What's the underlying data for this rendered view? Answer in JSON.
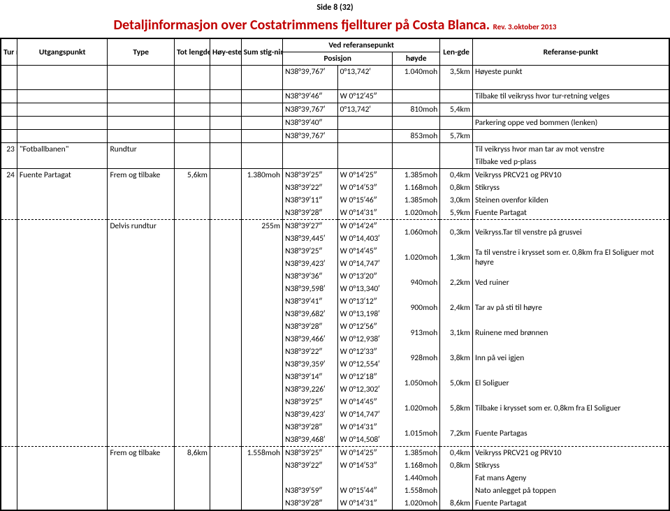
{
  "page_label": "Side 8 (32)",
  "title": "Detaljinformasjon over Costatrimmens fjellturer på Costa Blanca.",
  "rev": "Rev. 3.oktober 2013",
  "headers": {
    "turnr": "Tur nr.",
    "utg": "Utgangspunkt",
    "type": "Type",
    "tot": "Tot lengde",
    "hoy": "Høy-este pkt.",
    "sum": "Sum stig-ning",
    "vedref": "Ved referansepunkt",
    "posisjon": "Posisjon",
    "hoyde": "høyde",
    "len": "Len-gde",
    "ref": "Referanse-punkt"
  },
  "rows": [
    {
      "c": [
        "",
        "",
        "",
        "",
        "",
        "",
        "N38°39,767′",
        "0°13,742′",
        "1.040moh",
        "3,5km",
        "Høyeste punkt"
      ],
      "b": "novb"
    },
    {
      "blank": true
    },
    {
      "c": [
        "",
        "",
        "",
        "",
        "",
        "",
        "N38°39′46″",
        "W 0°12′45″",
        "",
        "",
        "Tilbake til veikryss hvor tur-retning velges"
      ]
    },
    {
      "c": [
        "",
        "",
        "",
        "",
        "",
        "",
        "N38°39,767′",
        "0°13,742′",
        "810moh",
        "5,4km",
        ""
      ]
    },
    {
      "c": [
        "",
        "",
        "",
        "",
        "",
        "",
        "N38°39′40″",
        "",
        "",
        "",
        "Parkering oppe ved bommen (lenken)"
      ]
    },
    {
      "c": [
        "",
        "",
        "",
        "",
        "",
        "",
        "N38°39,767′",
        "",
        "853moh",
        "5,7km",
        ""
      ]
    },
    {
      "c": [
        "23",
        "\"Fotballbanen\"",
        "Rundtur",
        "",
        "",
        "",
        "",
        "",
        "",
        "",
        "Til veikryss hvor man tar av mot venstre"
      ],
      "b": "top"
    },
    {
      "c": [
        "",
        "",
        "",
        "",
        "",
        "",
        "",
        "",
        "",
        "",
        "Tilbake ved p-plass"
      ],
      "b": "novb"
    },
    {
      "c": [
        "24",
        "Fuente Partagat",
        "Frem og tilbake",
        "5,6km",
        "",
        "1.380moh",
        "N38°39′25″",
        "W 0°14′25″",
        "1.385moh",
        "0,4km",
        "Veikryss PRCV21 og PRV10"
      ],
      "b": "top"
    },
    {
      "c": [
        "",
        "",
        "",
        "",
        "",
        "",
        "N38°39′22″",
        "W 0°14′53″",
        "1.168moh",
        "0,8km",
        "Stikryss"
      ],
      "b": "novb"
    },
    {
      "c": [
        "",
        "",
        "",
        "",
        "",
        "",
        "N38°39′11″",
        "W 0°15′46″",
        "1.385moh",
        "3,0km",
        "Steinen ovenfor kilden"
      ],
      "b": "novb"
    },
    {
      "c": [
        "",
        "",
        "",
        "",
        "",
        "",
        "N38°39′28″",
        "W 0°14′31″",
        "1.020moh",
        "5,9km",
        "Fuente Partagat"
      ],
      "b": "novb"
    },
    {
      "c": [
        "",
        "",
        "Delvis rundtur",
        "",
        "",
        "255m",
        "N38°39′27″",
        "W 0°14′24″",
        "1.060moh",
        "0,3km",
        "Veikryss.Tar til venstre på grusvei"
      ],
      "b": "dashedtop",
      "rs2": [
        8,
        9,
        10
      ]
    },
    {
      "c": [
        "",
        "",
        "",
        "",
        "",
        "",
        "N38°39,445′",
        "W 0°14,403′",
        "",
        "",
        ""
      ],
      "b": "novb"
    },
    {
      "c": [
        "",
        "",
        "",
        "",
        "",
        "",
        "N38°39′25″",
        "W 0°14′45″",
        "1.020moh",
        "1,3km",
        "Ta til venstre i krysset som er. 0,8km fra El Soliguer mot høyre"
      ],
      "b": "novb",
      "rs2": [
        8,
        9,
        10
      ]
    },
    {
      "c": [
        "",
        "",
        "",
        "",
        "",
        "",
        "N38°39,423′",
        "W 0°14,747′",
        "",
        "",
        ""
      ],
      "b": "novb"
    },
    {
      "c": [
        "",
        "",
        "",
        "",
        "",
        "",
        "N38°39′36″",
        "W 0°13′20″",
        "940moh",
        "2,2km",
        "Ved ruiner"
      ],
      "b": "novb",
      "rs2": [
        8,
        9,
        10
      ]
    },
    {
      "c": [
        "",
        "",
        "",
        "",
        "",
        "",
        "N38°39,598′",
        "W 0°13,340′",
        "",
        "",
        ""
      ],
      "b": "novb"
    },
    {
      "c": [
        "",
        "",
        "",
        "",
        "",
        "",
        "N38°39′41″",
        "W 0°13′12″",
        "900moh",
        "2,4km",
        "Tar av på sti til høyre"
      ],
      "b": "novb",
      "rs2": [
        8,
        9,
        10
      ]
    },
    {
      "c": [
        "",
        "",
        "",
        "",
        "",
        "",
        "N38°39,682′",
        "W 0°13,198′",
        "",
        "",
        ""
      ],
      "b": "novb"
    },
    {
      "c": [
        "",
        "",
        "",
        "",
        "",
        "",
        "N38°39′28″",
        "W 0°12′56″",
        "913moh",
        "3,1km",
        "Ruinene med brønnen"
      ],
      "b": "novb",
      "rs2": [
        8,
        9,
        10
      ]
    },
    {
      "c": [
        "",
        "",
        "",
        "",
        "",
        "",
        "N38°39,466′",
        "W 0°12,938′",
        "",
        "",
        ""
      ],
      "b": "novb"
    },
    {
      "c": [
        "",
        "",
        "",
        "",
        "",
        "",
        "N38°39′22″",
        "W 0°12′33″",
        "928moh",
        "3,8km",
        "Inn på vei igjen"
      ],
      "b": "novb",
      "rs2": [
        8,
        9,
        10
      ]
    },
    {
      "c": [
        "",
        "",
        "",
        "",
        "",
        "",
        "N38°39,359′",
        "W 0°12,554′",
        "",
        "",
        ""
      ],
      "b": "novb"
    },
    {
      "c": [
        "",
        "",
        "",
        "",
        "",
        "",
        "N38°39′14″",
        "W 0°12′18″",
        "1.050moh",
        "5,0km",
        "El Soliguer"
      ],
      "b": "novb",
      "rs2": [
        8,
        9,
        10
      ]
    },
    {
      "c": [
        "",
        "",
        "",
        "",
        "",
        "",
        "N38°39,226′",
        "W 0°12,302′",
        "",
        "",
        ""
      ],
      "b": "novb"
    },
    {
      "c": [
        "",
        "",
        "",
        "",
        "",
        "",
        "N38°39′25″",
        "W 0°14′45″",
        "1.020moh",
        "5,8km",
        "Tilbake i krysset som er. 0,8km fra El Soliguer"
      ],
      "b": "novb",
      "rs2": [
        8,
        9,
        10
      ]
    },
    {
      "c": [
        "",
        "",
        "",
        "",
        "",
        "",
        "N38°39,423′",
        "W 0°14,747′",
        "",
        "",
        ""
      ],
      "b": "novb"
    },
    {
      "c": [
        "",
        "",
        "",
        "",
        "",
        "",
        "N38°39′28″",
        "W 0°14′31″",
        "1.015moh",
        "7,2km",
        "Fuente Partagas"
      ],
      "b": "novb",
      "rs2": [
        8,
        9,
        10
      ]
    },
    {
      "c": [
        "",
        "",
        "",
        "",
        "",
        "",
        "N38°39,468′",
        "W 0°14,508′",
        "",
        "",
        ""
      ],
      "b": "novb"
    },
    {
      "c": [
        "",
        "",
        "Frem og tilbake",
        "8,6km",
        "",
        "1.558moh",
        "N38°39′25″",
        "W 0°14′25″",
        "1.385moh",
        "0,4km",
        "Veikryss PRCV21 og PRV10"
      ],
      "b": "dashedtop"
    },
    {
      "c": [
        "",
        "",
        "",
        "",
        "",
        "",
        "N38°39′22″",
        "W 0°14′53″",
        "1.168moh",
        "0,8km",
        "Stikryss"
      ],
      "b": "novb"
    },
    {
      "c": [
        "",
        "",
        "",
        "",
        "",
        "",
        "",
        "",
        "1.440moh",
        "",
        "Fat mans Ageny"
      ],
      "b": "novb"
    },
    {
      "c": [
        "",
        "",
        "",
        "",
        "",
        "",
        "N38°39′59″",
        "W 0°15′44″",
        "1.558moh",
        "",
        "Nato anlegget på toppen"
      ],
      "b": "novb"
    },
    {
      "c": [
        "",
        "",
        "",
        "",
        "",
        "",
        "N38°39′28″",
        "W 0°14′31″",
        "1.020moh",
        "8,6km",
        "Fuente Partagat"
      ],
      "b": "novb"
    }
  ]
}
